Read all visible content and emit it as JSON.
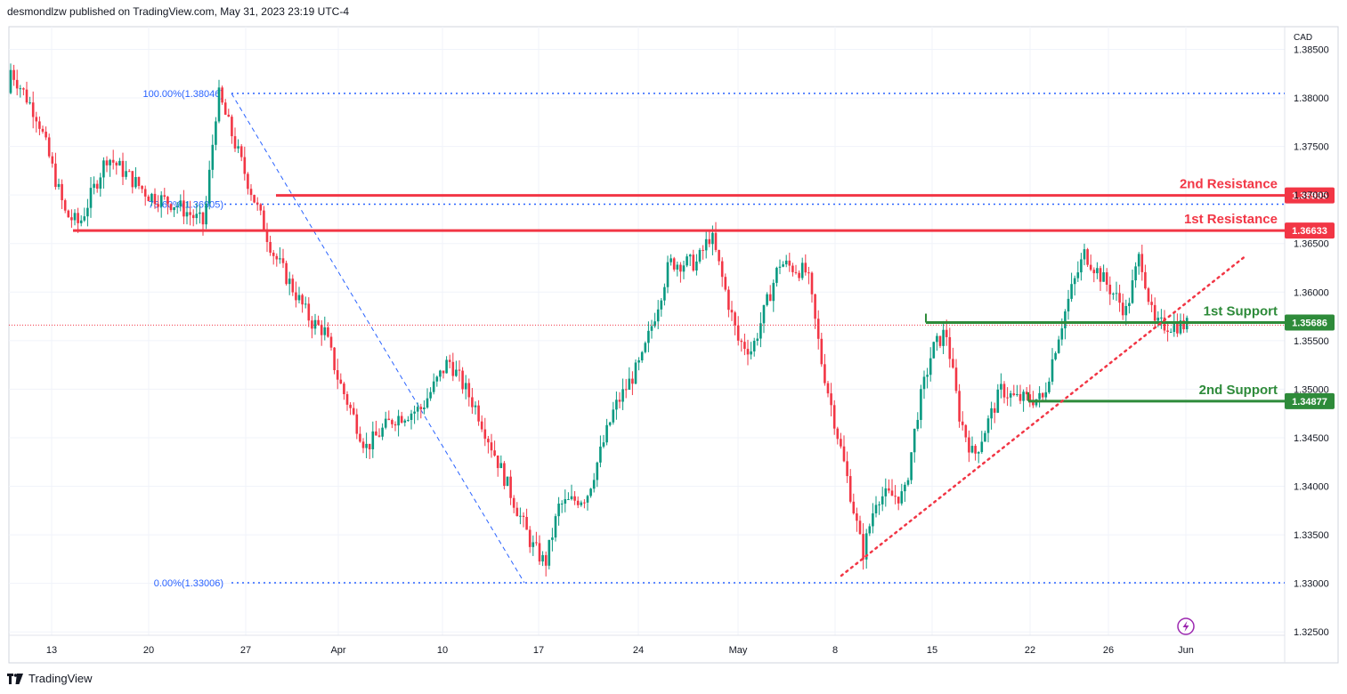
{
  "header": {
    "publisher_line": "desmondlzw published on TradingView.com, May 31, 2023 23:19 UTC-4"
  },
  "footer": {
    "brand": "TradingView",
    "logo_icon": "tradingview-logo-icon"
  },
  "quick_action_icon": "lightning-bolt-icon",
  "colors": {
    "up": "#089981",
    "down": "#f23645",
    "resistance": "#f23645",
    "support": "#2e8b3a",
    "fib": "#2962ff",
    "trendline": "#f23645",
    "axis_text": "#131722",
    "grid": "#f0f3fa"
  },
  "chart_data": {
    "type": "candlestick",
    "instrument_currency": "CAD",
    "price_axis": {
      "unit": "CAD",
      "ticks": [
        "1.38500",
        "1.38000",
        "1.37500",
        "1.37000",
        "1.36500",
        "1.36000",
        "1.35500",
        "1.35000",
        "1.34500",
        "1.34000",
        "1.33500",
        "1.33000",
        "1.32500"
      ],
      "ylim": [
        1.3232,
        1.3869
      ]
    },
    "time_axis": {
      "ticks": [
        "13",
        "20",
        "27",
        "Apr",
        "10",
        "17",
        "24",
        "May",
        "8",
        "15",
        "22",
        "26",
        "Jun"
      ]
    },
    "levels": [
      {
        "name": "2nd Resistance",
        "value": 1.36995,
        "label": "1.36995",
        "kind": "resistance"
      },
      {
        "name": "1st Resistance",
        "value": 1.36633,
        "label": "1.36633",
        "kind": "resistance"
      },
      {
        "name": "1st Support",
        "value": 1.35686,
        "label": "1.35686",
        "kind": "support"
      },
      {
        "name": "2nd Support",
        "value": 1.34877,
        "label": "1.34877",
        "kind": "support"
      }
    ],
    "fibonacci": [
      {
        "label": "100.00%(1.38046)",
        "value": 1.38046
      },
      {
        "label": "78.60%(1.36905)",
        "value": 1.36905
      },
      {
        "label": "0.00%(1.33006)",
        "value": 1.33006
      }
    ],
    "current_price_line": 1.3566,
    "path": [
      [
        "Mar 09",
        1.3805
      ],
      [
        "Mar 10",
        1.383
      ],
      [
        "Mar 12",
        1.378
      ],
      [
        "Mar 14",
        1.368
      ],
      [
        "Mar 15",
        1.367
      ],
      [
        "Mar 17",
        1.374
      ],
      [
        "Mar 20",
        1.37
      ],
      [
        "Mar 22",
        1.369
      ],
      [
        "Mar 24",
        1.367
      ],
      [
        "Mar 25",
        1.3805
      ],
      [
        "Mar 27",
        1.372
      ],
      [
        "Mar 29",
        1.364
      ],
      [
        "Apr 01",
        1.357
      ],
      [
        "Apr 02",
        1.356
      ],
      [
        "Apr 03",
        1.351
      ],
      [
        "Apr 05",
        1.344
      ],
      [
        "Apr 07",
        1.347
      ],
      [
        "Apr 09",
        1.348
      ],
      [
        "Apr 11",
        1.353
      ],
      [
        "Apr 13",
        1.348
      ],
      [
        "Apr 15",
        1.341
      ],
      [
        "Apr 17",
        1.334
      ],
      [
        "Apr 18",
        1.332
      ],
      [
        "Apr 19",
        1.338
      ],
      [
        "Apr 21",
        1.339
      ],
      [
        "Apr 23",
        1.348
      ],
      [
        "Apr 25",
        1.353
      ],
      [
        "Apr 27",
        1.363
      ],
      [
        "Apr 29",
        1.363
      ],
      [
        "Apr 30",
        1.366
      ],
      [
        "May 01",
        1.355
      ],
      [
        "May 02",
        1.354
      ],
      [
        "May 04",
        1.363
      ],
      [
        "May 06",
        1.362
      ],
      [
        "May 07",
        1.353
      ],
      [
        "May 09",
        1.34
      ],
      [
        "May 10",
        1.333
      ],
      [
        "May 11",
        1.339
      ],
      [
        "May 13",
        1.339
      ],
      [
        "May 14",
        1.348
      ],
      [
        "May 15",
        1.354
      ],
      [
        "May 16",
        1.356
      ],
      [
        "May 17",
        1.347
      ],
      [
        "May 18",
        1.343
      ],
      [
        "May 20",
        1.35
      ],
      [
        "May 21",
        1.349
      ],
      [
        "May 23",
        1.349
      ],
      [
        "May 24",
        1.355
      ],
      [
        "May 25",
        1.36
      ],
      [
        "May 26",
        1.364
      ],
      [
        "May 28",
        1.36
      ],
      [
        "May 29",
        1.358
      ],
      [
        "May 30",
        1.364
      ],
      [
        "May 31",
        1.3566
      ]
    ]
  }
}
